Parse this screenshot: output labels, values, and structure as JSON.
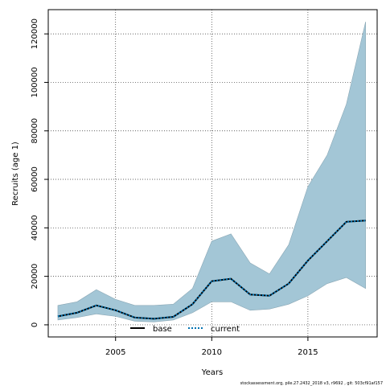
{
  "chart_data": {
    "type": "line",
    "xlabel": "Years",
    "ylabel": "Recruits (age 1)",
    "xlim": [
      2001.5,
      2018.6
    ],
    "ylim": [
      -5000,
      130000
    ],
    "xticks": [
      2005,
      2010,
      2015
    ],
    "yticks": [
      0,
      20000,
      40000,
      60000,
      80000,
      100000,
      120000
    ],
    "grid": true,
    "legend_position": "bottom-left",
    "x": [
      2002,
      2003,
      2004,
      2005,
      2006,
      2007,
      2008,
      2009,
      2010,
      2011,
      2012,
      2013,
      2014,
      2015,
      2016,
      2017,
      2018
    ],
    "interval": {
      "color": "#a3c6d6",
      "lower": [
        2000,
        3000,
        4500,
        3500,
        1500,
        1200,
        2000,
        5000,
        9500,
        9500,
        6000,
        6500,
        8500,
        12000,
        17000,
        19500,
        15000
      ],
      "upper": [
        8000,
        9500,
        14500,
        10500,
        8000,
        8000,
        8500,
        15000,
        34500,
        37500,
        25500,
        21000,
        33000,
        57000,
        70000,
        91000,
        125000
      ]
    },
    "series": [
      {
        "name": "base",
        "style": "solid",
        "color": "#000000",
        "values": [
          3500,
          5000,
          8000,
          6000,
          3000,
          2500,
          3300,
          8500,
          18000,
          19000,
          12500,
          12000,
          17000,
          26500,
          34500,
          42500,
          43000
        ]
      },
      {
        "name": "current",
        "style": "dotted",
        "color": "#0072b2",
        "values": [
          3500,
          5000,
          8000,
          6000,
          3000,
          2500,
          3300,
          8500,
          18000,
          19000,
          12500,
          12000,
          17000,
          26500,
          34500,
          42500,
          43000
        ]
      }
    ]
  },
  "footnote": "stockassessment.org, pile.27.2432_2018 v3, r9692 , git: 503cf91af157"
}
